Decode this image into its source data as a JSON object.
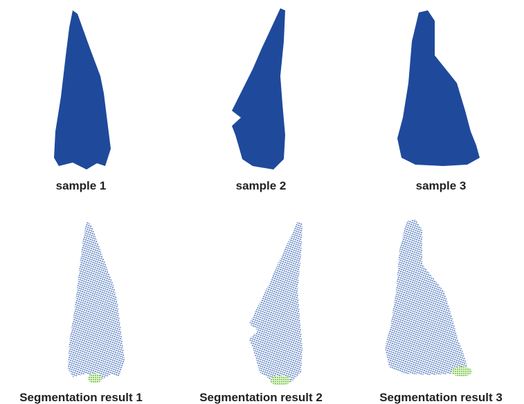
{
  "panels": [
    {
      "label": "sample 1"
    },
    {
      "label": "sample 2"
    },
    {
      "label": "sample 3"
    },
    {
      "label": "Segmentation result 1"
    },
    {
      "label": "Segmentation result 2"
    },
    {
      "label": "Segmentation result 3"
    }
  ]
}
